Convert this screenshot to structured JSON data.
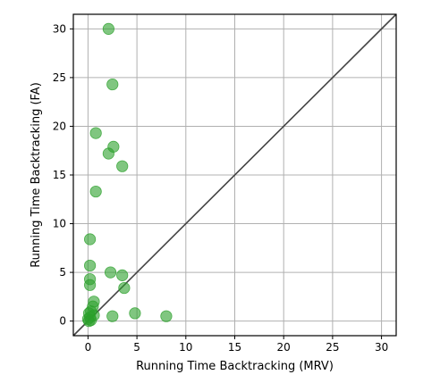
{
  "chart_data": {
    "type": "scatter",
    "title": "",
    "xlabel": "Running Time Backtracking (MRV)",
    "ylabel": "Running Time Backtracking (FA)",
    "xlim": [
      -1.5,
      31.5
    ],
    "ylim": [
      -1.5,
      31.5
    ],
    "xticks": [
      0,
      5,
      10,
      15,
      20,
      25,
      30
    ],
    "yticks": [
      0,
      5,
      10,
      15,
      20,
      25,
      30
    ],
    "grid": true,
    "reference_line": "y = x",
    "reference_line_color": "#444444",
    "point_color": "#2ca02c",
    "point_opacity": 0.6,
    "points": [
      {
        "x": 2.1,
        "y": 30.0
      },
      {
        "x": 2.5,
        "y": 24.3
      },
      {
        "x": 0.8,
        "y": 19.3
      },
      {
        "x": 2.6,
        "y": 17.9
      },
      {
        "x": 2.1,
        "y": 17.2
      },
      {
        "x": 3.5,
        "y": 15.9
      },
      {
        "x": 0.8,
        "y": 13.3
      },
      {
        "x": 0.2,
        "y": 8.4
      },
      {
        "x": 0.2,
        "y": 5.7
      },
      {
        "x": 2.3,
        "y": 5.0
      },
      {
        "x": 3.5,
        "y": 4.7
      },
      {
        "x": 0.2,
        "y": 4.3
      },
      {
        "x": 0.2,
        "y": 3.7
      },
      {
        "x": 3.7,
        "y": 3.4
      },
      {
        "x": 0.6,
        "y": 2.0
      },
      {
        "x": 0.5,
        "y": 1.5
      },
      {
        "x": 0.3,
        "y": 1.0
      },
      {
        "x": 0.1,
        "y": 0.8
      },
      {
        "x": 0.6,
        "y": 0.6
      },
      {
        "x": 0.2,
        "y": 0.4
      },
      {
        "x": 0.0,
        "y": 0.2
      },
      {
        "x": 0.3,
        "y": 0.1
      },
      {
        "x": 0.1,
        "y": 0.0
      },
      {
        "x": 2.5,
        "y": 0.5
      },
      {
        "x": 4.8,
        "y": 0.8
      },
      {
        "x": 8.0,
        "y": 0.5
      }
    ]
  }
}
